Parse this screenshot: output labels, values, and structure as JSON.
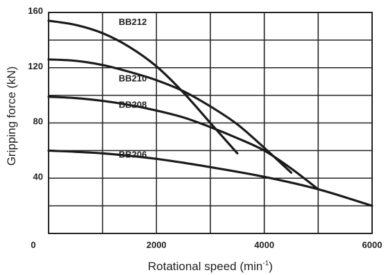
{
  "chart_data": {
    "type": "line",
    "title": "",
    "xlabel": "Rotational speed (min",
    "xlabel_sup": "-1",
    "xlabel_close": ")",
    "ylabel": "Gripping force  (kN)",
    "xlim": [
      0,
      6000
    ],
    "ylim": [
      0,
      160
    ],
    "x_ticks": [
      0,
      2000,
      4000,
      6000
    ],
    "y_ticks": [
      40,
      80,
      120,
      160
    ],
    "x_tick_labels": [
      "0",
      "2000",
      "4000",
      "6000"
    ],
    "y_tick_labels": [
      "40",
      "80",
      "120",
      "160"
    ],
    "x_grid_step": 1000,
    "y_grid_step": 20,
    "grid": true,
    "series": [
      {
        "name": "BB212",
        "x": [
          0,
          500,
          1000,
          1500,
          2000,
          2500,
          3000,
          3500
        ],
        "y": [
          154,
          151,
          145,
          135,
          121,
          102,
          80,
          58
        ],
        "label_at": [
          1300,
          151
        ]
      },
      {
        "name": "BB210",
        "x": [
          0,
          500,
          1000,
          1500,
          2000,
          2500,
          3000,
          3500,
          4000,
          4500
        ],
        "y": [
          126,
          125,
          122,
          117,
          111,
          103,
          92,
          79,
          62,
          44
        ],
        "label_at": [
          1300,
          110
        ]
      },
      {
        "name": "BB208",
        "x": [
          0,
          500,
          1000,
          1500,
          2000,
          2500,
          3000,
          3500,
          4000,
          4500,
          5000
        ],
        "y": [
          99,
          98,
          96,
          93,
          89,
          84,
          77,
          69,
          60,
          47,
          32
        ],
        "label_at": [
          1300,
          91
        ]
      },
      {
        "name": "BB206",
        "x": [
          0,
          1000,
          2000,
          3000,
          4000,
          5000,
          6000
        ],
        "y": [
          60,
          58,
          54,
          48,
          41,
          32,
          20
        ],
        "label_at": [
          1300,
          55
        ]
      }
    ]
  }
}
